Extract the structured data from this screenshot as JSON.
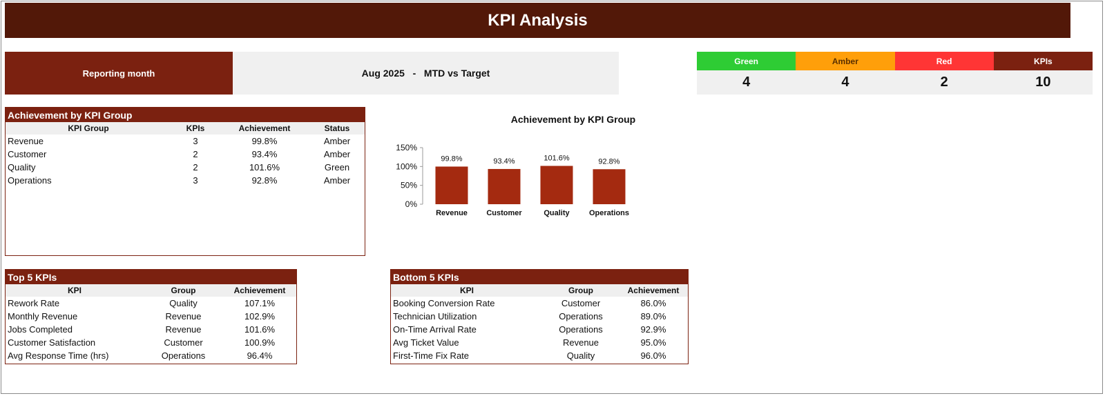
{
  "header": {
    "title": "KPI Analysis"
  },
  "reporting": {
    "label": "Reporting month",
    "value": "Aug 2025   -   MTD vs Target"
  },
  "status_summary": [
    {
      "label": "Green",
      "count": "4",
      "color": "#2ecc34"
    },
    {
      "label": "Amber",
      "count": "4",
      "color": "#ff9f0a"
    },
    {
      "label": "Red",
      "count": "2",
      "color": "#ff3535"
    },
    {
      "label": "KPIs",
      "count": "10",
      "color": "#7b2110"
    }
  ],
  "group_table": {
    "title": "Achievement by KPI Group",
    "headers": [
      "KPI Group",
      "KPIs",
      "Achievement",
      "Status"
    ],
    "rows": [
      [
        "Revenue",
        "3",
        "99.8%",
        "Amber"
      ],
      [
        "Customer",
        "2",
        "93.4%",
        "Amber"
      ],
      [
        "Quality",
        "2",
        "101.6%",
        "Green"
      ],
      [
        "Operations",
        "3",
        "92.8%",
        "Amber"
      ]
    ]
  },
  "chart_data": {
    "type": "bar",
    "title": "Achievement by KPI Group",
    "categories": [
      "Revenue",
      "Customer",
      "Quality",
      "Operations"
    ],
    "values": [
      99.8,
      93.4,
      101.6,
      92.8
    ],
    "data_labels": [
      "99.8%",
      "93.4%",
      "101.6%",
      "92.8%"
    ],
    "y_ticks": [
      "150%",
      "100%",
      "50%",
      "0%"
    ],
    "ylim": [
      0,
      150
    ],
    "bar_color": "#a42a10",
    "grid": false,
    "legend": "none"
  },
  "top5": {
    "title": "Top 5 KPIs",
    "headers": [
      "KPI",
      "Group",
      "Achievement"
    ],
    "rows": [
      [
        "Rework Rate",
        "Quality",
        "107.1%"
      ],
      [
        "Monthly Revenue",
        "Revenue",
        "102.9%"
      ],
      [
        "Jobs Completed",
        "Revenue",
        "101.6%"
      ],
      [
        "Customer Satisfaction",
        "Customer",
        "100.9%"
      ],
      [
        "Avg Response Time (hrs)",
        "Operations",
        "96.4%"
      ]
    ]
  },
  "bottom5": {
    "title": "Bottom 5 KPIs",
    "headers": [
      "KPI",
      "Group",
      "Achievement"
    ],
    "rows": [
      [
        "Booking Conversion Rate",
        "Customer",
        "86.0%"
      ],
      [
        "Technician Utilization",
        "Operations",
        "89.0%"
      ],
      [
        "On-Time Arrival Rate",
        "Operations",
        "92.9%"
      ],
      [
        "Avg Ticket Value",
        "Revenue",
        "95.0%"
      ],
      [
        "First-Time Fix Rate",
        "Quality",
        "96.0%"
      ]
    ]
  }
}
